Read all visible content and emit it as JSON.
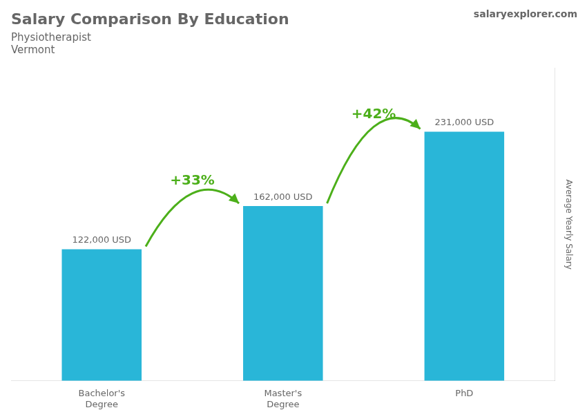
{
  "chart_data": {
    "type": "bar",
    "title": "Salary Comparison By Education",
    "subtitle": [
      "Physiotherapist",
      "Vermont"
    ],
    "categories": [
      "Bachelor's\nDegree",
      "Master's\nDegree",
      "PhD"
    ],
    "values": [
      122000,
      162000,
      231000
    ],
    "value_labels": [
      "122,000 USD",
      "162,000 USD",
      "231,000 USD"
    ],
    "data_labels": true,
    "color": "#29b6d8",
    "ylabel": "Average Yearly Salary",
    "ylim": [
      0,
      290000
    ],
    "tick_labels": "x",
    "grid": false,
    "annotations": [
      {
        "text": "+33%",
        "from": "Bachelor's\nDegree",
        "to": "Master's\nDegree"
      },
      {
        "text": "+42%",
        "from": "Master's\nDegree",
        "to": "PhD"
      },
      {
        "text": "salaryexplorer.com"
      }
    ]
  }
}
